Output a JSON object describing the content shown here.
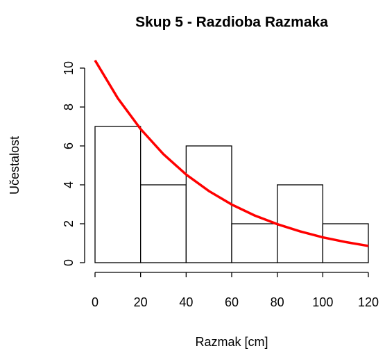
{
  "chart_data": {
    "type": "histogram",
    "title": "Skup 5 - Razdioba Razmaka",
    "xlabel": "Razmak [cm]",
    "ylabel": "Učestalost",
    "bins": [
      0,
      20,
      40,
      60,
      80,
      100,
      120
    ],
    "counts": [
      7,
      4,
      6,
      2,
      4,
      2
    ],
    "color": "#ffffff",
    "edgecolor": "#000000",
    "xlim": [
      0,
      120
    ],
    "xticks": [
      0,
      20,
      40,
      60,
      80,
      100,
      120
    ],
    "ylim": [
      0,
      10
    ],
    "yticks": [
      0,
      2,
      4,
      6,
      8,
      10
    ],
    "curve": {
      "type": "line",
      "color": "#ff0000",
      "x": [
        0,
        10,
        20,
        30,
        40,
        50,
        60,
        70,
        80,
        90,
        100,
        110,
        120
      ],
      "values": [
        10.4,
        8.45,
        6.87,
        5.58,
        4.53,
        3.68,
        2.99,
        2.43,
        1.98,
        1.61,
        1.3,
        1.06,
        0.86
      ]
    }
  }
}
